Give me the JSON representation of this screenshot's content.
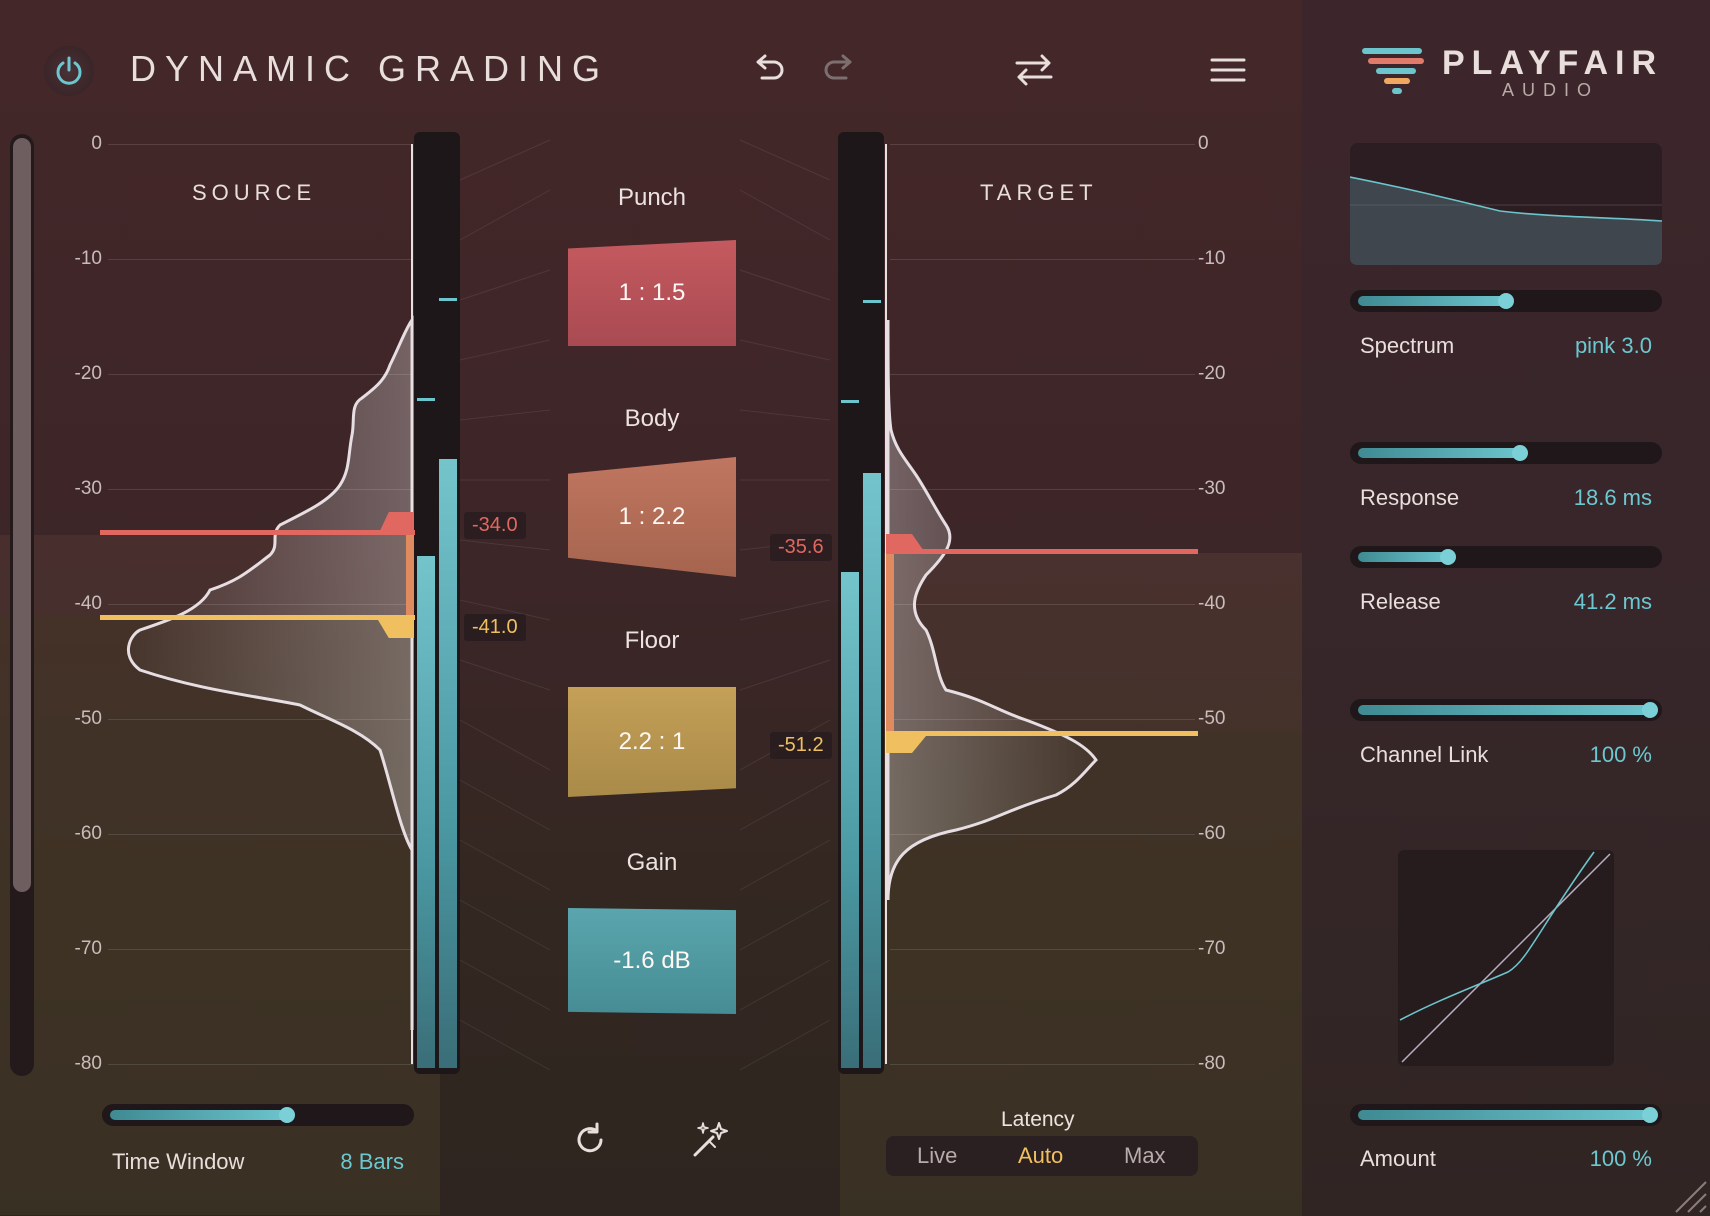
{
  "header": {
    "title": "DYNAMIC GRADING",
    "brand_name": "PLAYFAIR",
    "brand_sub": "AUDIO"
  },
  "source": {
    "label": "SOURCE",
    "scale": [
      "0",
      "-10",
      "-20",
      "-30",
      "-40",
      "-50",
      "-60",
      "-70",
      "-80"
    ],
    "threshold_high": "-34.0",
    "threshold_low": "-41.0"
  },
  "target": {
    "label": "TARGET",
    "scale": [
      "0",
      "-10",
      "-20",
      "-30",
      "-40",
      "-50",
      "-60",
      "-70",
      "-80"
    ],
    "threshold_high": "-35.6",
    "threshold_low": "-51.2"
  },
  "modules": [
    {
      "label": "Punch",
      "value": "1 : 1.5",
      "color": "#b9525a"
    },
    {
      "label": "Body",
      "value": "1 : 2.2",
      "color": "#b06e58"
    },
    {
      "label": "Floor",
      "value": "2.2 : 1",
      "color": "#b39450"
    },
    {
      "label": "Gain",
      "value": "-1.6 dB",
      "color": "#4d9aa2"
    }
  ],
  "time_window": {
    "label": "Time Window",
    "value": "8 Bars",
    "level": 0.6
  },
  "latency": {
    "label": "Latency",
    "options": [
      "Live",
      "Auto",
      "Max"
    ],
    "selected": "Auto"
  },
  "params": [
    {
      "label": "Spectrum",
      "value": "pink 3.0",
      "level": 0.5
    },
    {
      "label": "Response",
      "value": "18.6 ms",
      "level": 0.55
    },
    {
      "label": "Release",
      "value": "41.2 ms",
      "level": 0.3
    },
    {
      "label": "Channel Link",
      "value": "100 %",
      "level": 1.0
    },
    {
      "label": "Amount",
      "value": "100 %",
      "level": 1.0
    }
  ],
  "colors": {
    "accent": "#6cc4cc",
    "threshold_high": "#e06860",
    "threshold_low": "#f0c060",
    "latency_selected": "#f0c060"
  },
  "icons": [
    "power-icon",
    "undo-icon",
    "redo-icon",
    "swap-icon",
    "menu-icon",
    "reset-icon",
    "magic-wand-icon",
    "brand-logo-icon"
  ]
}
